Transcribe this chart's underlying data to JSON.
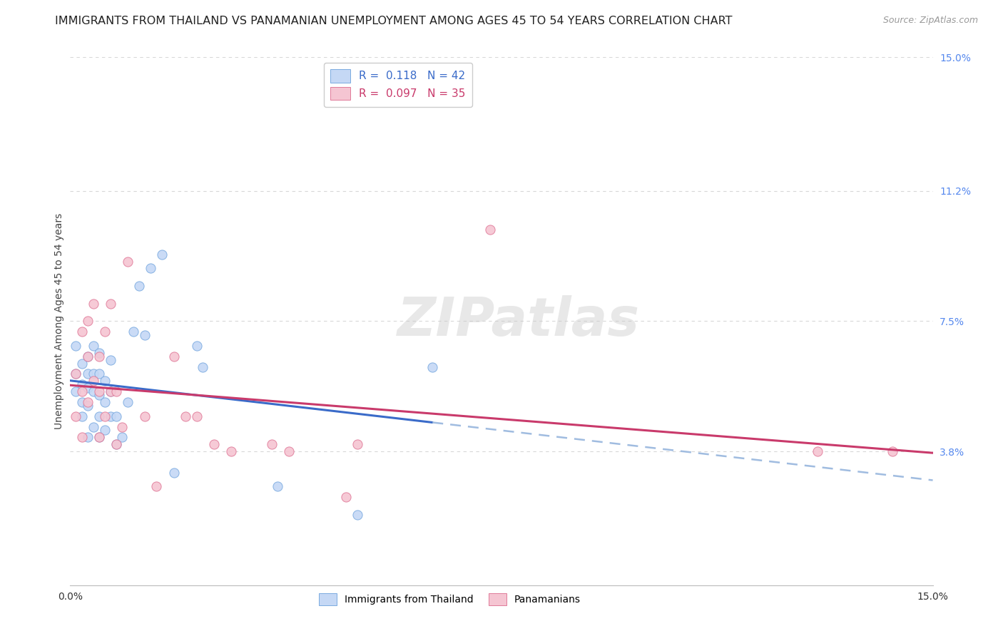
{
  "title": "IMMIGRANTS FROM THAILAND VS PANAMANIAN UNEMPLOYMENT AMONG AGES 45 TO 54 YEARS CORRELATION CHART",
  "source": "Source: ZipAtlas.com",
  "ylabel": "Unemployment Among Ages 45 to 54 years",
  "xlim": [
    0,
    0.15
  ],
  "ylim": [
    0,
    0.15
  ],
  "yticks": [
    0.038,
    0.075,
    0.112,
    0.15
  ],
  "ytick_labels": [
    "3.8%",
    "7.5%",
    "11.2%",
    "15.0%"
  ],
  "xticks": [
    0.0,
    0.025,
    0.05,
    0.075,
    0.1,
    0.125,
    0.15
  ],
  "background_color": "#ffffff",
  "grid_color": "#d8d8d8",
  "legend1_label": "R =  0.118   N = 42",
  "legend2_label": "R =  0.097   N = 35",
  "series1_fill": "#c5d8f5",
  "series2_fill": "#f5c5d2",
  "series1_edge": "#7aaae0",
  "series2_edge": "#e07a99",
  "regline1_color": "#3a6bc9",
  "regline2_color": "#c93a6b",
  "dashed_line_color": "#a0bce0",
  "watermark": "ZIPatlas",
  "series1_x": [
    0.001,
    0.001,
    0.001,
    0.002,
    0.002,
    0.002,
    0.002,
    0.003,
    0.003,
    0.003,
    0.003,
    0.003,
    0.004,
    0.004,
    0.004,
    0.004,
    0.005,
    0.005,
    0.005,
    0.005,
    0.005,
    0.006,
    0.006,
    0.006,
    0.007,
    0.007,
    0.007,
    0.008,
    0.008,
    0.009,
    0.01,
    0.011,
    0.012,
    0.013,
    0.014,
    0.016,
    0.018,
    0.022,
    0.023,
    0.036,
    0.05,
    0.063
  ],
  "series1_y": [
    0.055,
    0.06,
    0.068,
    0.048,
    0.052,
    0.057,
    0.063,
    0.042,
    0.051,
    0.056,
    0.06,
    0.065,
    0.045,
    0.055,
    0.06,
    0.068,
    0.042,
    0.048,
    0.054,
    0.06,
    0.066,
    0.044,
    0.052,
    0.058,
    0.048,
    0.055,
    0.064,
    0.04,
    0.048,
    0.042,
    0.052,
    0.072,
    0.085,
    0.071,
    0.09,
    0.094,
    0.032,
    0.068,
    0.062,
    0.028,
    0.02,
    0.062
  ],
  "series2_x": [
    0.001,
    0.001,
    0.002,
    0.002,
    0.002,
    0.003,
    0.003,
    0.003,
    0.004,
    0.004,
    0.005,
    0.005,
    0.005,
    0.006,
    0.006,
    0.007,
    0.007,
    0.008,
    0.008,
    0.009,
    0.01,
    0.013,
    0.015,
    0.018,
    0.02,
    0.022,
    0.025,
    0.028,
    0.035,
    0.038,
    0.048,
    0.05,
    0.073,
    0.13,
    0.143
  ],
  "series2_y": [
    0.048,
    0.06,
    0.042,
    0.055,
    0.072,
    0.052,
    0.065,
    0.075,
    0.058,
    0.08,
    0.042,
    0.055,
    0.065,
    0.048,
    0.072,
    0.055,
    0.08,
    0.04,
    0.055,
    0.045,
    0.092,
    0.048,
    0.028,
    0.065,
    0.048,
    0.048,
    0.04,
    0.038,
    0.04,
    0.038,
    0.025,
    0.04,
    0.101,
    0.038,
    0.038
  ],
  "title_fontsize": 11.5,
  "source_fontsize": 9,
  "label_fontsize": 10,
  "tick_fontsize": 10,
  "legend_fontsize": 11,
  "marker_size": 90
}
